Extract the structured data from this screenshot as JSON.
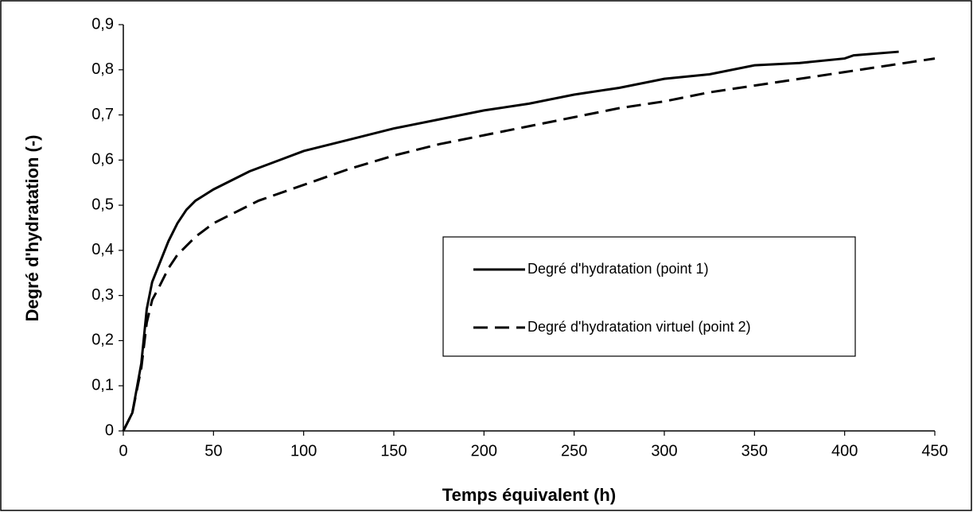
{
  "chart_data": {
    "type": "line",
    "x_label": "Temps équivalent (h)",
    "y_label": "Degré d'hydratation (-)",
    "xlim": [
      0,
      450
    ],
    "xticks": [
      0,
      50,
      100,
      150,
      200,
      250,
      300,
      350,
      400,
      450
    ],
    "ylim": [
      0,
      0.9
    ],
    "yticks": [
      0,
      {
        "value": 0.1,
        "label": "0,1"
      },
      {
        "value": 0.2,
        "label": "0,2"
      },
      {
        "value": 0.3,
        "label": "0,3"
      },
      {
        "value": 0.4,
        "label": "0,4"
      },
      {
        "value": 0.5,
        "label": "0,5"
      },
      {
        "value": 0.6,
        "label": "0,6"
      },
      {
        "value": 0.7,
        "label": "0,7"
      },
      {
        "value": 0.8,
        "label": "0,8"
      },
      {
        "value": 0.9,
        "label": "0,9"
      }
    ],
    "grid": false,
    "series": [
      {
        "name": "Degré d'hydratation (point 1)",
        "color": "#000000",
        "line_style": "solid",
        "x": [
          0,
          5,
          10,
          13,
          16,
          20,
          25,
          30,
          35,
          40,
          50,
          60,
          70,
          80,
          90,
          100,
          125,
          150,
          175,
          200,
          225,
          250,
          275,
          300,
          325,
          350,
          375,
          400,
          405,
          430
        ],
        "values": [
          0,
          0.04,
          0.15,
          0.27,
          0.33,
          0.37,
          0.42,
          0.46,
          0.49,
          0.51,
          0.535,
          0.555,
          0.575,
          0.59,
          0.605,
          0.62,
          0.645,
          0.67,
          0.69,
          0.71,
          0.725,
          0.745,
          0.76,
          0.78,
          0.79,
          0.81,
          0.815,
          0.825,
          0.832,
          0.84
        ]
      },
      {
        "name": "Degré d'hydratation virtuel (point 2)",
        "color": "#000000",
        "line_style": "dashed",
        "x": [
          0,
          5,
          10,
          13,
          16,
          20,
          25,
          30,
          40,
          50,
          75,
          100,
          125,
          150,
          175,
          200,
          225,
          250,
          275,
          300,
          325,
          350,
          375,
          400,
          425,
          450
        ],
        "values": [
          0,
          0.04,
          0.14,
          0.24,
          0.29,
          0.32,
          0.36,
          0.39,
          0.43,
          0.46,
          0.51,
          0.545,
          0.58,
          0.61,
          0.635,
          0.655,
          0.675,
          0.695,
          0.715,
          0.73,
          0.75,
          0.765,
          0.78,
          0.795,
          0.81,
          0.825
        ]
      }
    ]
  }
}
